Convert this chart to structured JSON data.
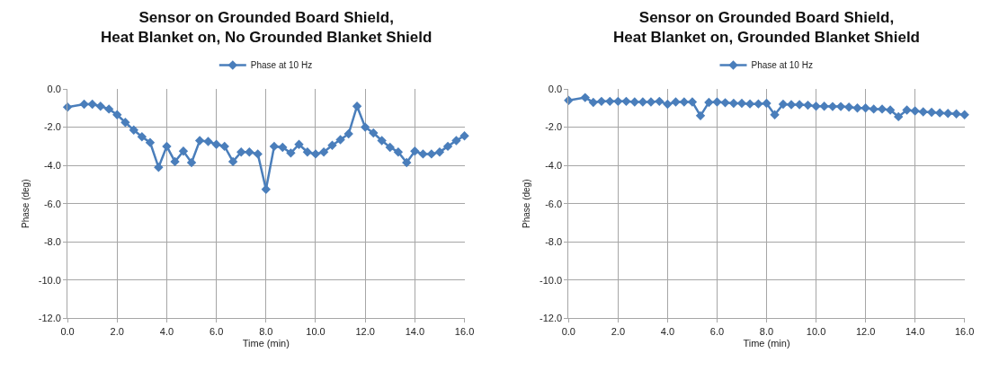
{
  "chart_data": [
    {
      "type": "line",
      "title": "Sensor on Grounded Board Shield,\nHeat Blanket on, No Grounded Blanket Shield",
      "xlabel": "Time (min)",
      "ylabel": "Phase (deg)",
      "x": [
        0.0,
        0.67,
        1.0,
        1.33,
        1.67,
        2.0,
        2.33,
        2.67,
        3.0,
        3.33,
        3.67,
        4.0,
        4.33,
        4.67,
        5.0,
        5.33,
        5.67,
        6.0,
        6.33,
        6.67,
        7.0,
        7.33,
        7.67,
        8.0,
        8.33,
        8.67,
        9.0,
        9.33,
        9.67,
        10.0,
        10.33,
        10.67,
        11.0,
        11.33,
        11.67,
        12.0,
        12.33,
        12.67,
        13.0,
        13.33,
        13.67,
        14.0,
        14.33,
        14.67,
        15.0,
        15.33,
        15.67,
        16.0
      ],
      "series": [
        {
          "name": "Phase at 10 Hz",
          "color": "#4a7ebb",
          "values": [
            -0.95,
            -0.8,
            -0.8,
            -0.9,
            -1.05,
            -1.35,
            -1.75,
            -2.15,
            -2.5,
            -2.8,
            -4.1,
            -3.0,
            -3.8,
            -3.25,
            -3.85,
            -2.7,
            -2.75,
            -2.9,
            -3.0,
            -3.8,
            -3.3,
            -3.3,
            -3.4,
            -5.25,
            -3.0,
            -3.05,
            -3.35,
            -2.9,
            -3.3,
            -3.4,
            -3.3,
            -2.95,
            -2.65,
            -2.35,
            -0.9,
            -2.0,
            -2.3,
            -2.7,
            -3.05,
            -3.3,
            -3.85,
            -3.25,
            -3.4,
            -3.4,
            -3.3,
            -3.0,
            -2.7,
            -2.45
          ]
        }
      ],
      "xlim": [
        0,
        16
      ],
      "xticks": [
        {
          "value": 0,
          "label": "0.0"
        },
        {
          "value": 2,
          "label": "2.0"
        },
        {
          "value": 4,
          "label": "4.0"
        },
        {
          "value": 6,
          "label": "6.0"
        },
        {
          "value": 8,
          "label": "8.0"
        },
        {
          "value": 10,
          "label": "10.0"
        },
        {
          "value": 12,
          "label": "12.0"
        },
        {
          "value": 14,
          "label": "14.0"
        },
        {
          "value": 16,
          "label": "16.0"
        }
      ],
      "ylim": [
        -12,
        0
      ],
      "yticks": [
        {
          "value": -12,
          "label": "-12.0"
        },
        {
          "value": -10,
          "label": "-10.0"
        },
        {
          "value": -8,
          "label": "-8.0"
        },
        {
          "value": -6,
          "label": "-6.0"
        },
        {
          "value": -4,
          "label": "-4.0"
        },
        {
          "value": -2,
          "label": "-2.0"
        },
        {
          "value": 0,
          "label": "0.0"
        }
      ],
      "grid": true,
      "legend": "top",
      "marker": "diamond",
      "line_style": "solid"
    },
    {
      "type": "line",
      "title": "Sensor on Grounded Board Shield,\nHeat Blanket on, Grounded Blanket Shield",
      "xlabel": "Time (min)",
      "ylabel": "Phase (deg)",
      "x": [
        0.0,
        0.67,
        1.0,
        1.33,
        1.67,
        2.0,
        2.33,
        2.67,
        3.0,
        3.33,
        3.67,
        4.0,
        4.33,
        4.67,
        5.0,
        5.33,
        5.67,
        6.0,
        6.33,
        6.67,
        7.0,
        7.33,
        7.67,
        8.0,
        8.33,
        8.67,
        9.0,
        9.33,
        9.67,
        10.0,
        10.33,
        10.67,
        11.0,
        11.33,
        11.67,
        12.0,
        12.33,
        12.67,
        13.0,
        13.33,
        13.67,
        14.0,
        14.33,
        14.67,
        15.0,
        15.33,
        15.67,
        16.0
      ],
      "series": [
        {
          "name": "Phase at 10 Hz",
          "color": "#4a7ebb",
          "values": [
            -0.6,
            -0.45,
            -0.7,
            -0.65,
            -0.65,
            -0.65,
            -0.65,
            -0.68,
            -0.68,
            -0.68,
            -0.65,
            -0.8,
            -0.68,
            -0.68,
            -0.68,
            -1.4,
            -0.7,
            -0.68,
            -0.72,
            -0.75,
            -0.75,
            -0.78,
            -0.78,
            -0.75,
            -1.35,
            -0.8,
            -0.82,
            -0.82,
            -0.85,
            -0.9,
            -0.9,
            -0.92,
            -0.92,
            -0.95,
            -1.0,
            -1.0,
            -1.05,
            -1.05,
            -1.1,
            -1.45,
            -1.1,
            -1.15,
            -1.2,
            -1.22,
            -1.25,
            -1.28,
            -1.3,
            -1.35
          ]
        }
      ],
      "xlim": [
        0,
        16
      ],
      "xticks": [
        {
          "value": 0,
          "label": "0.0"
        },
        {
          "value": 2,
          "label": "2.0"
        },
        {
          "value": 4,
          "label": "4.0"
        },
        {
          "value": 6,
          "label": "6.0"
        },
        {
          "value": 8,
          "label": "8.0"
        },
        {
          "value": 10,
          "label": "10.0"
        },
        {
          "value": 12,
          "label": "12.0"
        },
        {
          "value": 14,
          "label": "14.0"
        },
        {
          "value": 16,
          "label": "16.0"
        }
      ],
      "ylim": [
        -12,
        0
      ],
      "yticks": [
        {
          "value": -12,
          "label": "-12.0"
        },
        {
          "value": -10,
          "label": "-10.0"
        },
        {
          "value": -8,
          "label": "-8.0"
        },
        {
          "value": -6,
          "label": "-6.0"
        },
        {
          "value": -4,
          "label": "-4.0"
        },
        {
          "value": -2,
          "label": "-2.0"
        },
        {
          "value": 0,
          "label": "0.0"
        }
      ],
      "grid": true,
      "legend": "top",
      "marker": "diamond",
      "line_style": "solid"
    }
  ]
}
